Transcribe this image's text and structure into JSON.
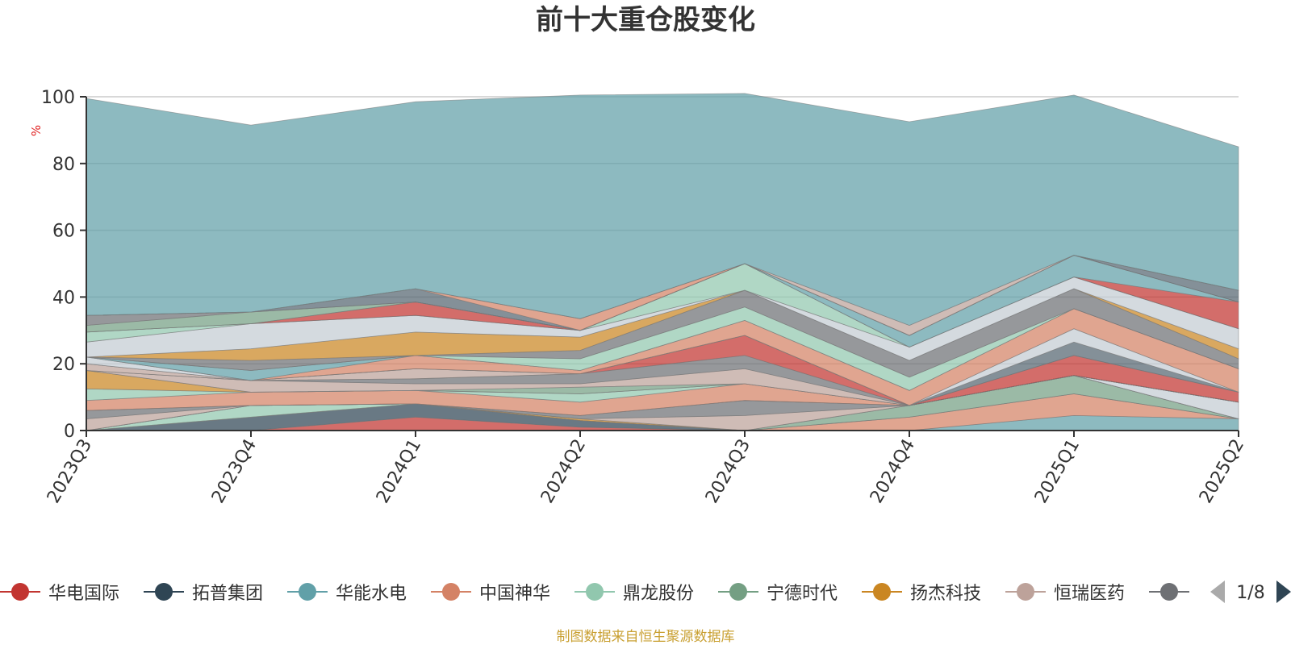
{
  "chart_data": {
    "type": "area",
    "stacked": true,
    "title": "前十大重仓股变化",
    "ylabel": "%",
    "ylim": [
      0,
      100
    ],
    "yticks": [
      0,
      20,
      40,
      60,
      80,
      100
    ],
    "grid": true,
    "categories": [
      "2023Q3",
      "2023Q4",
      "2024Q1",
      "2024Q2",
      "2024Q3",
      "2024Q4",
      "2025Q1",
      "2025Q2"
    ],
    "series": [
      {
        "name": "华电国际",
        "color": "#c23531",
        "values": [
          0,
          0,
          4,
          1,
          0,
          0,
          0,
          0
        ]
      },
      {
        "name": "拓普集团",
        "color": "#2f4554",
        "values": [
          0,
          4,
          4,
          2,
          0,
          0,
          0,
          0
        ]
      },
      {
        "name": "华能水电",
        "color": "#61a0a8",
        "values": [
          0,
          0,
          0,
          0,
          0,
          0,
          4.5,
          3.5
        ]
      },
      {
        "name": "中国神华",
        "color": "#d48265",
        "values": [
          0,
          0,
          0,
          0,
          0,
          4,
          6.5,
          0
        ]
      },
      {
        "name": "鼎龙股份",
        "color": "#91c7ae",
        "values": [
          0,
          3.5,
          0,
          0,
          0,
          0,
          0,
          0
        ]
      },
      {
        "name": "宁德时代",
        "color": "#749f83",
        "values": [
          0,
          0,
          0,
          0,
          0,
          3.5,
          5.5,
          0
        ]
      },
      {
        "name": "扬杰科技",
        "color": "#ca8622",
        "values": [
          0,
          0,
          0,
          0.5,
          0,
          0,
          0,
          0
        ]
      },
      {
        "name": "恒瑞医药",
        "color": "#bda29a",
        "values": [
          3.5,
          0,
          0,
          0,
          4.5,
          0,
          0,
          0
        ]
      },
      {
        "name": "",
        "color": "#6e7074",
        "values": [
          2.5,
          0,
          0,
          1,
          4.5,
          0,
          0,
          0
        ]
      },
      {
        "name": "",
        "color": "#546570",
        "values": [
          0,
          0,
          0,
          0,
          0,
          0,
          0,
          0
        ]
      },
      {
        "name": "",
        "color": "#c4ccd3",
        "values": [
          0,
          0,
          0,
          0,
          0,
          0,
          0,
          5
        ]
      },
      {
        "name": "",
        "color": "#d48265",
        "values": [
          3,
          4,
          4,
          4,
          5,
          0,
          0,
          0
        ]
      },
      {
        "name": "",
        "color": "#91c7ae",
        "values": [
          3.5,
          0,
          0,
          2.5,
          0,
          0,
          0,
          0
        ]
      },
      {
        "name": "",
        "color": "#ca8622",
        "values": [
          5.5,
          0,
          0,
          0,
          0,
          0,
          0,
          0
        ]
      },
      {
        "name": "",
        "color": "#749f83",
        "values": [
          0,
          0,
          0,
          2,
          0,
          0,
          0,
          0
        ]
      },
      {
        "name": "",
        "color": "#bda29a",
        "values": [
          0,
          3.5,
          2,
          1,
          4.5,
          0,
          0,
          0
        ]
      },
      {
        "name": "",
        "color": "#6e7074",
        "values": [
          0,
          0,
          1.5,
          3,
          4,
          0,
          0,
          0
        ]
      },
      {
        "name": "",
        "color": "#c23531",
        "values": [
          0,
          0,
          0,
          0,
          6,
          0,
          6,
          3
        ]
      },
      {
        "name": "",
        "color": "#bda29a",
        "values": [
          2,
          0,
          3,
          0,
          0,
          0,
          0,
          0
        ]
      },
      {
        "name": "",
        "color": "#546570",
        "values": [
          0,
          0,
          0,
          0,
          0,
          0,
          4,
          0
        ]
      },
      {
        "name": "",
        "color": "#c4ccd3",
        "values": [
          2,
          0,
          0,
          0,
          0,
          0,
          4,
          0
        ]
      },
      {
        "name": "",
        "color": "#d48265",
        "values": [
          0,
          0,
          4,
          1,
          4.5,
          4.5,
          6,
          7
        ]
      },
      {
        "name": "",
        "color": "#61a0a8",
        "values": [
          0,
          3,
          0,
          0,
          0,
          0,
          0,
          0
        ]
      },
      {
        "name": "",
        "color": "#91c7ae",
        "values": [
          0,
          0,
          0,
          3.5,
          4,
          4,
          0,
          0
        ]
      },
      {
        "name": "",
        "color": "#6e7074",
        "values": [
          0,
          3,
          0,
          2.5,
          5,
          5,
          6,
          3
        ]
      },
      {
        "name": "",
        "color": "#ca8622",
        "values": [
          0,
          3.5,
          7,
          4,
          0,
          0,
          0,
          3
        ]
      },
      {
        "name": "",
        "color": "#c4ccd3",
        "values": [
          4.5,
          7.5,
          5,
          2,
          0,
          4,
          3.5,
          6
        ]
      },
      {
        "name": "",
        "color": "#91c7ae",
        "values": [
          3,
          0,
          0,
          0,
          8,
          0,
          0,
          0
        ]
      },
      {
        "name": "",
        "color": "#c23531",
        "values": [
          0,
          0,
          4,
          0,
          0,
          0,
          0,
          8
        ]
      },
      {
        "name": "",
        "color": "#61a0a8",
        "values": [
          0,
          0,
          0,
          0,
          0,
          3.5,
          6.5,
          0
        ]
      },
      {
        "name": "",
        "color": "#749f83",
        "values": [
          2,
          3.5,
          0,
          0,
          0,
          0,
          0,
          0
        ]
      },
      {
        "name": "",
        "color": "#6e7074",
        "values": [
          3,
          0,
          0,
          0,
          0,
          0,
          0,
          0
        ]
      },
      {
        "name": "",
        "color": "#546570",
        "values": [
          0,
          0,
          4,
          0,
          0,
          0,
          0,
          3.5
        ]
      },
      {
        "name": "",
        "color": "#d48265",
        "values": [
          0,
          0,
          0,
          3.5,
          0,
          0,
          0,
          0
        ]
      },
      {
        "name": "",
        "color": "#bda29a",
        "values": [
          0,
          0,
          0,
          0,
          0,
          3,
          0,
          0
        ]
      },
      {
        "name": "",
        "color": "#61a0a8",
        "values": [
          65,
          56,
          56,
          67,
          51,
          61,
          48,
          43
        ]
      }
    ]
  },
  "legend": {
    "items": [
      {
        "label": "华电国际",
        "color": "#c23531"
      },
      {
        "label": "拓普集团",
        "color": "#2f4554"
      },
      {
        "label": "华能水电",
        "color": "#61a0a8"
      },
      {
        "label": "中国神华",
        "color": "#d48265"
      },
      {
        "label": "鼎龙股份",
        "color": "#91c7ae"
      },
      {
        "label": "宁德时代",
        "color": "#749f83"
      },
      {
        "label": "扬杰科技",
        "color": "#ca8622"
      },
      {
        "label": "恒瑞医药",
        "color": "#bda29a"
      },
      {
        "label": "",
        "color": "#6e7074"
      }
    ],
    "page_indicator": "1/8"
  },
  "footer": {
    "source_text": "制图数据来自恒生聚源数据库"
  }
}
